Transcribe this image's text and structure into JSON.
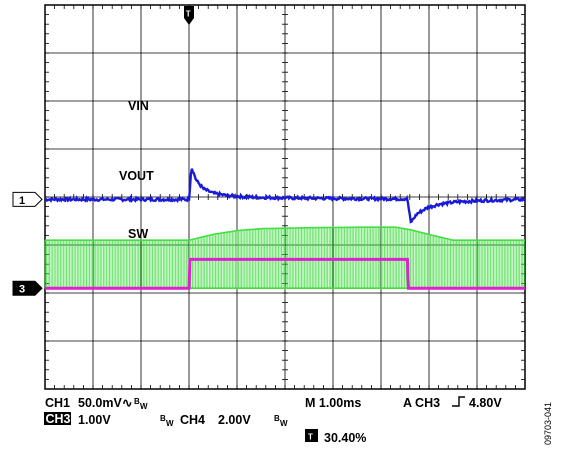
{
  "chart_data": {
    "type": "line",
    "title": "",
    "grid": true,
    "divisions": {
      "x": 10,
      "y": 8
    },
    "series": [
      {
        "name": "VIN",
        "color": "#e020d0",
        "unit": "div",
        "x": [
          0,
          3.0,
          3.02,
          7.55,
          7.57,
          10
        ],
        "values": [
          -1.9,
          -1.9,
          -1.3,
          -1.3,
          -1.9,
          -1.9
        ]
      },
      {
        "name": "VOUT",
        "color": "#1a1ad8",
        "unit": "div",
        "x": [
          0,
          3.0,
          3.05,
          3.15,
          3.3,
          3.5,
          3.8,
          4.2,
          5.0,
          6.0,
          7.55,
          7.62,
          7.75,
          7.95,
          8.2,
          8.6,
          9.2,
          10
        ],
        "values": [
          0,
          0,
          0.68,
          0.4,
          0.22,
          0.13,
          0.08,
          0.05,
          0.03,
          0.02,
          0.01,
          -0.48,
          -0.3,
          -0.18,
          -0.1,
          -0.05,
          -0.02,
          0
        ]
      },
      {
        "name": "SW",
        "color": "#44dd44",
        "unit": "div",
        "x": [
          0,
          3.0,
          3.5,
          4.0,
          4.5,
          5.5,
          6.5,
          7.3,
          7.6,
          8.0,
          8.5,
          10
        ],
        "envelope_top": [
          1.0,
          1.0,
          1.12,
          1.2,
          1.24,
          1.26,
          1.27,
          1.27,
          1.22,
          1.12,
          1.0,
          1.0
        ],
        "envelope_bottom": [
          0,
          0,
          0,
          0,
          0,
          0,
          0,
          0,
          0,
          0,
          0,
          0
        ]
      }
    ],
    "trace_labels": [
      {
        "text": "VIN",
        "series": "VIN"
      },
      {
        "text": "VOUT",
        "series": "VOUT"
      },
      {
        "text": "SW",
        "series": "SW"
      }
    ],
    "trigger_marker": {
      "text": "T",
      "position_div": 3.0
    },
    "ground_markers": [
      {
        "channel": "1",
        "series": "VOUT"
      },
      {
        "channel": "3",
        "series": "SW"
      }
    ]
  },
  "readout": {
    "ch1_label": "CH1",
    "ch1_scale": "50.0mV",
    "ch1_coupling": "∿",
    "bw_symbol": "B",
    "bw_sub": "W",
    "ch3_label": "CH3",
    "ch3_scale": "1.00V",
    "ch4_label": "CH4",
    "ch4_scale": "2.00V",
    "timebase": "M 1.00ms",
    "trigger_label": "A CH3",
    "trigger_slope": "⌐",
    "trigger_level": "4.80V",
    "trigger_pos_icon": "T",
    "trigger_pos": "30.40%"
  },
  "figure_id": "09703-041",
  "colors": {
    "vin": "#e020d0",
    "vout": "#1a1ad8",
    "sw": "#44dd44",
    "grid": "#000000"
  }
}
